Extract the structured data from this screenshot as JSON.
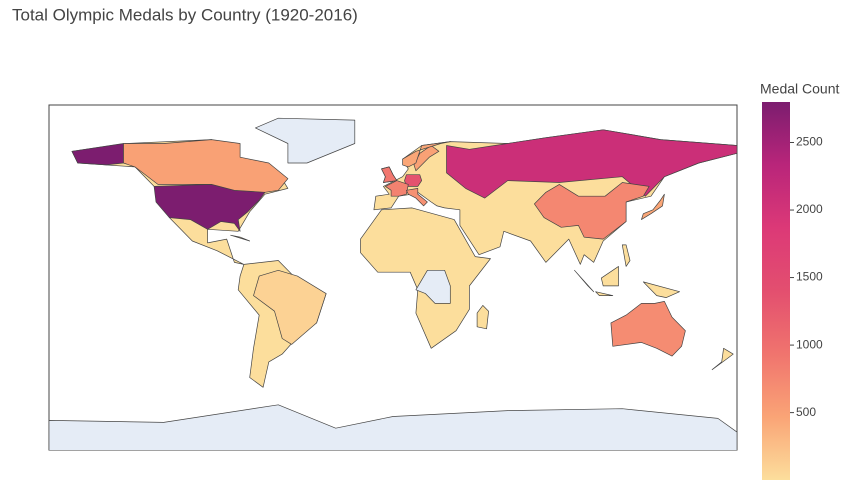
{
  "chart_data": {
    "type": "choropleth",
    "title": "Total Olympic Medals by Country (1920-2016)",
    "colorbar_title": "Medal Count",
    "values": [
      2800,
      500,
      2100,
      750,
      700,
      1350,
      800,
      900,
      650,
      500,
      450,
      100,
      450
    ],
    "colorscale": [
      "#fcde9c",
      "#faa476",
      "#f0746e",
      "#e34f6f",
      "#dc3977",
      "#b9257a",
      "#7c1d6f"
    ],
    "no_data_color": "#e5ecf6",
    "zlim": [
      1,
      2800
    ],
    "zticks": [
      500,
      1000,
      1500,
      2000,
      2500
    ]
  }
}
